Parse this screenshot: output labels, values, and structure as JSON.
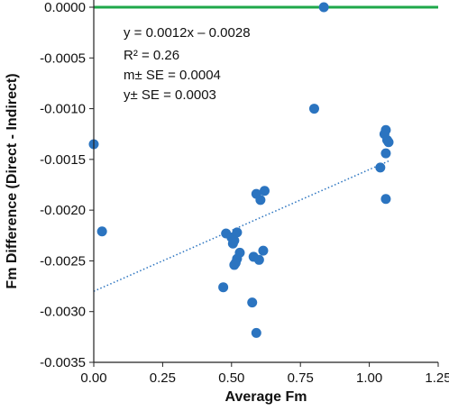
{
  "chart_data": {
    "type": "scatter",
    "xlabel": "Average Fm",
    "ylabel": "Fm Difference (Direct - Indirect)",
    "xlim": [
      0,
      1.25
    ],
    "ylim": [
      -0.0035,
      0.0
    ],
    "x_ticks": [
      "0.00",
      "0.25",
      "0.50",
      "0.75",
      "1.00",
      "1.25"
    ],
    "y_ticks": [
      "0.0000",
      "-0.0005",
      "-0.0010",
      "-0.0015",
      "-0.0020",
      "-0.0025",
      "-0.0030",
      "-0.0035"
    ],
    "grid": false,
    "series": [
      {
        "color": "#2b74c0",
        "points": [
          {
            "x": 0.835,
            "y": 0.0
          },
          {
            "x": 0.8,
            "y": -0.001
          },
          {
            "x": 0.0,
            "y": -0.00135
          },
          {
            "x": 0.03,
            "y": -0.00221
          },
          {
            "x": 1.06,
            "y": -0.00121
          },
          {
            "x": 1.055,
            "y": -0.00125
          },
          {
            "x": 1.065,
            "y": -0.00131
          },
          {
            "x": 1.07,
            "y": -0.00133
          },
          {
            "x": 1.04,
            "y": -0.00158
          },
          {
            "x": 1.06,
            "y": -0.00144
          },
          {
            "x": 1.06,
            "y": -0.00189
          },
          {
            "x": 0.59,
            "y": -0.00184
          },
          {
            "x": 0.605,
            "y": -0.0019
          },
          {
            "x": 0.62,
            "y": -0.00181
          },
          {
            "x": 0.48,
            "y": -0.00223
          },
          {
            "x": 0.5,
            "y": -0.00227
          },
          {
            "x": 0.52,
            "y": -0.00222
          },
          {
            "x": 0.505,
            "y": -0.00233
          },
          {
            "x": 0.51,
            "y": -0.0023
          },
          {
            "x": 0.53,
            "y": -0.00242
          },
          {
            "x": 0.52,
            "y": -0.00248
          },
          {
            "x": 0.51,
            "y": -0.00254
          },
          {
            "x": 0.515,
            "y": -0.00252
          },
          {
            "x": 0.58,
            "y": -0.00246
          },
          {
            "x": 0.6,
            "y": -0.00249
          },
          {
            "x": 0.615,
            "y": -0.0024
          },
          {
            "x": 0.47,
            "y": -0.00276
          },
          {
            "x": 0.575,
            "y": -0.00291
          },
          {
            "x": 0.59,
            "y": -0.00321
          }
        ]
      }
    ],
    "reference_line": {
      "y": 0.0,
      "color": "#1ea84a"
    },
    "trendline": {
      "slope": 0.0012,
      "intercept": -0.0028,
      "x_range": [
        0.0,
        1.07
      ],
      "color": "#2b74c0",
      "style": "dotted"
    },
    "annotations": [
      "y = 0.0012x – 0.0028",
      "R² = 0.26",
      "m± SE = 0.0004",
      "y± SE = 0.0003"
    ]
  }
}
